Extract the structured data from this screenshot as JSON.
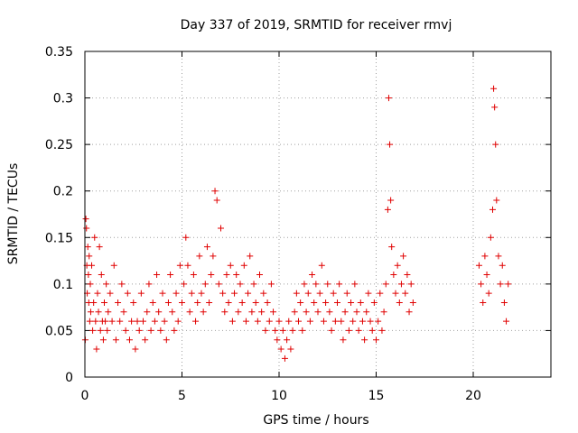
{
  "chart_data": {
    "type": "scatter",
    "title": "Day 337 of 2019, SRMTID for receiver rmvj",
    "xlabel": "GPS time / hours",
    "ylabel": "SRMTID / TECUs",
    "xlim": [
      0,
      24
    ],
    "ylim": [
      0,
      0.35
    ],
    "xticks": [
      0,
      5,
      10,
      15,
      20
    ],
    "yticks": [
      0,
      0.05,
      0.1,
      0.15,
      0.2,
      0.25,
      0.3,
      0.35
    ],
    "ytick_labels": [
      "0",
      "0.05",
      "0.1",
      "0.15",
      "0.2",
      "0.25",
      "0.3",
      "0.35"
    ],
    "grid": true,
    "marker": "+",
    "color": "#e00000",
    "series": [
      {
        "points": [
          [
            0.02,
            0.04
          ],
          [
            0.05,
            0.17
          ],
          [
            0.08,
            0.16
          ],
          [
            0.1,
            0.12
          ],
          [
            0.12,
            0.09
          ],
          [
            0.15,
            0.14
          ],
          [
            0.18,
            0.11
          ],
          [
            0.2,
            0.08
          ],
          [
            0.22,
            0.13
          ],
          [
            0.25,
            0.06
          ],
          [
            0.28,
            0.1
          ],
          [
            0.3,
            0.07
          ],
          [
            0.35,
            0.12
          ],
          [
            0.4,
            0.05
          ],
          [
            0.45,
            0.08
          ],
          [
            0.5,
            0.15
          ],
          [
            0.55,
            0.06
          ],
          [
            0.6,
            0.03
          ],
          [
            0.65,
            0.09
          ],
          [
            0.7,
            0.07
          ],
          [
            0.75,
            0.14
          ],
          [
            0.8,
            0.05
          ],
          [
            0.85,
            0.11
          ],
          [
            0.9,
            0.06
          ],
          [
            0.95,
            0.04
          ],
          [
            1.0,
            0.08
          ],
          [
            1.05,
            0.06
          ],
          [
            1.1,
            0.1
          ],
          [
            1.15,
            0.05
          ],
          [
            1.2,
            0.07
          ],
          [
            1.3,
            0.09
          ],
          [
            1.4,
            0.06
          ],
          [
            1.5,
            0.12
          ],
          [
            1.6,
            0.04
          ],
          [
            1.7,
            0.08
          ],
          [
            1.8,
            0.06
          ],
          [
            1.9,
            0.1
          ],
          [
            2.0,
            0.07
          ],
          [
            2.1,
            0.05
          ],
          [
            2.2,
            0.09
          ],
          [
            2.3,
            0.04
          ],
          [
            2.4,
            0.06
          ],
          [
            2.5,
            0.08
          ],
          [
            2.6,
            0.03
          ],
          [
            2.7,
            0.06
          ],
          [
            2.8,
            0.05
          ],
          [
            2.9,
            0.09
          ],
          [
            3.0,
            0.06
          ],
          [
            3.1,
            0.04
          ],
          [
            3.2,
            0.07
          ],
          [
            3.3,
            0.1
          ],
          [
            3.4,
            0.05
          ],
          [
            3.5,
            0.08
          ],
          [
            3.6,
            0.06
          ],
          [
            3.7,
            0.11
          ],
          [
            3.8,
            0.07
          ],
          [
            3.9,
            0.05
          ],
          [
            4.0,
            0.09
          ],
          [
            4.1,
            0.06
          ],
          [
            4.2,
            0.04
          ],
          [
            4.3,
            0.08
          ],
          [
            4.4,
            0.11
          ],
          [
            4.5,
            0.07
          ],
          [
            4.6,
            0.05
          ],
          [
            4.7,
            0.09
          ],
          [
            4.8,
            0.06
          ],
          [
            4.9,
            0.12
          ],
          [
            5.0,
            0.08
          ],
          [
            5.1,
            0.1
          ],
          [
            5.2,
            0.15
          ],
          [
            5.3,
            0.12
          ],
          [
            5.4,
            0.07
          ],
          [
            5.5,
            0.09
          ],
          [
            5.6,
            0.11
          ],
          [
            5.7,
            0.06
          ],
          [
            5.8,
            0.08
          ],
          [
            5.9,
            0.13
          ],
          [
            6.0,
            0.09
          ],
          [
            6.1,
            0.07
          ],
          [
            6.2,
            0.1
          ],
          [
            6.3,
            0.14
          ],
          [
            6.4,
            0.08
          ],
          [
            6.5,
            0.11
          ],
          [
            6.6,
            0.13
          ],
          [
            6.7,
            0.2
          ],
          [
            6.8,
            0.19
          ],
          [
            6.9,
            0.1
          ],
          [
            7.0,
            0.16
          ],
          [
            7.1,
            0.09
          ],
          [
            7.2,
            0.07
          ],
          [
            7.3,
            0.11
          ],
          [
            7.4,
            0.08
          ],
          [
            7.5,
            0.12
          ],
          [
            7.6,
            0.06
          ],
          [
            7.7,
            0.09
          ],
          [
            7.8,
            0.11
          ],
          [
            7.9,
            0.07
          ],
          [
            8.0,
            0.1
          ],
          [
            8.1,
            0.08
          ],
          [
            8.2,
            0.12
          ],
          [
            8.3,
            0.06
          ],
          [
            8.4,
            0.09
          ],
          [
            8.5,
            0.13
          ],
          [
            8.6,
            0.07
          ],
          [
            8.7,
            0.1
          ],
          [
            8.8,
            0.08
          ],
          [
            8.9,
            0.06
          ],
          [
            9.0,
            0.11
          ],
          [
            9.1,
            0.07
          ],
          [
            9.2,
            0.09
          ],
          [
            9.3,
            0.05
          ],
          [
            9.4,
            0.08
          ],
          [
            9.5,
            0.06
          ],
          [
            9.6,
            0.1
          ],
          [
            9.7,
            0.07
          ],
          [
            9.8,
            0.05
          ],
          [
            9.9,
            0.04
          ],
          [
            10.0,
            0.06
          ],
          [
            10.1,
            0.03
          ],
          [
            10.2,
            0.05
          ],
          [
            10.3,
            0.02
          ],
          [
            10.4,
            0.04
          ],
          [
            10.5,
            0.06
          ],
          [
            10.6,
            0.03
          ],
          [
            10.7,
            0.05
          ],
          [
            10.8,
            0.07
          ],
          [
            10.9,
            0.09
          ],
          [
            11.0,
            0.06
          ],
          [
            11.1,
            0.08
          ],
          [
            11.2,
            0.05
          ],
          [
            11.3,
            0.1
          ],
          [
            11.4,
            0.07
          ],
          [
            11.5,
            0.09
          ],
          [
            11.6,
            0.06
          ],
          [
            11.7,
            0.11
          ],
          [
            11.8,
            0.08
          ],
          [
            11.9,
            0.1
          ],
          [
            12.0,
            0.07
          ],
          [
            12.1,
            0.09
          ],
          [
            12.2,
            0.12
          ],
          [
            12.3,
            0.06
          ],
          [
            12.4,
            0.08
          ],
          [
            12.5,
            0.1
          ],
          [
            12.6,
            0.07
          ],
          [
            12.7,
            0.05
          ],
          [
            12.8,
            0.09
          ],
          [
            12.9,
            0.06
          ],
          [
            13.0,
            0.08
          ],
          [
            13.1,
            0.1
          ],
          [
            13.2,
            0.06
          ],
          [
            13.3,
            0.04
          ],
          [
            13.4,
            0.07
          ],
          [
            13.5,
            0.09
          ],
          [
            13.6,
            0.05
          ],
          [
            13.7,
            0.08
          ],
          [
            13.8,
            0.06
          ],
          [
            13.9,
            0.1
          ],
          [
            14.0,
            0.07
          ],
          [
            14.1,
            0.05
          ],
          [
            14.2,
            0.08
          ],
          [
            14.3,
            0.06
          ],
          [
            14.4,
            0.04
          ],
          [
            14.5,
            0.07
          ],
          [
            14.6,
            0.09
          ],
          [
            14.7,
            0.06
          ],
          [
            14.8,
            0.05
          ],
          [
            14.9,
            0.08
          ],
          [
            15.0,
            0.04
          ],
          [
            15.1,
            0.06
          ],
          [
            15.2,
            0.09
          ],
          [
            15.3,
            0.05
          ],
          [
            15.4,
            0.07
          ],
          [
            15.5,
            0.1
          ],
          [
            15.6,
            0.18
          ],
          [
            15.65,
            0.3
          ],
          [
            15.7,
            0.25
          ],
          [
            15.75,
            0.19
          ],
          [
            15.8,
            0.14
          ],
          [
            15.9,
            0.11
          ],
          [
            16.0,
            0.09
          ],
          [
            16.1,
            0.12
          ],
          [
            16.2,
            0.08
          ],
          [
            16.3,
            0.1
          ],
          [
            16.4,
            0.13
          ],
          [
            16.5,
            0.09
          ],
          [
            16.6,
            0.11
          ],
          [
            16.7,
            0.07
          ],
          [
            16.8,
            0.1
          ],
          [
            16.9,
            0.08
          ],
          [
            20.3,
            0.12
          ],
          [
            20.4,
            0.1
          ],
          [
            20.5,
            0.08
          ],
          [
            20.6,
            0.13
          ],
          [
            20.7,
            0.11
          ],
          [
            20.8,
            0.09
          ],
          [
            20.9,
            0.15
          ],
          [
            21.0,
            0.18
          ],
          [
            21.05,
            0.31
          ],
          [
            21.1,
            0.29
          ],
          [
            21.15,
            0.25
          ],
          [
            21.2,
            0.19
          ],
          [
            21.3,
            0.13
          ],
          [
            21.4,
            0.1
          ],
          [
            21.5,
            0.12
          ],
          [
            21.6,
            0.08
          ],
          [
            21.7,
            0.06
          ],
          [
            21.8,
            0.1
          ]
        ]
      }
    ]
  }
}
